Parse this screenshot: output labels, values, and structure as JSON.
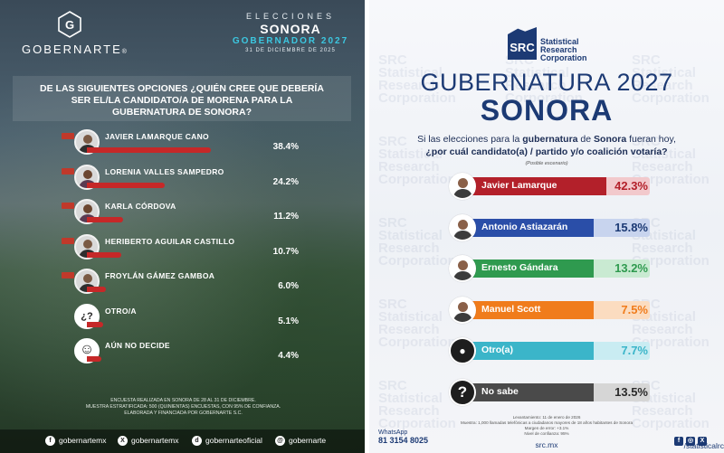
{
  "chart_data": [
    {
      "type": "bar",
      "title": "DE LAS SIGUIENTES OPCIONES ¿QUIÉN CREE QUE DEBERÍA SER EL/LA CANDIDATO/A DE MORENA PARA LA GUBERNATURA DE SONORA?",
      "categories": [
        "JAVIER LAMARQUE CANO",
        "LORENIA VALLES SAMPEDRO",
        "KARLA CÓRDOVA",
        "HERIBERTO AGUILAR CASTILLO",
        "FROYLÁN GÁMEZ GAMBOA",
        "OTRO/A",
        "AÚN NO DECIDE"
      ],
      "values": [
        38.4,
        24.2,
        11.2,
        10.7,
        6.0,
        5.1,
        4.4
      ],
      "value_labels": [
        "38.4%",
        "24.2%",
        "11.2%",
        "10.7%",
        "6.0%",
        "5.1%",
        "4.4%"
      ],
      "xlim": [
        0,
        40
      ],
      "bar_color": "#c62828"
    },
    {
      "type": "bar",
      "title": "GUBERNATURA 2027 SONORA",
      "categories": [
        "Javier Lamarque",
        "Antonio Astiazarán",
        "Ernesto Gándara",
        "Manuel Scott",
        "Otro(a)",
        "No sabe"
      ],
      "values": [
        42.3,
        15.8,
        13.2,
        7.5,
        7.7,
        13.5
      ],
      "value_labels": [
        "42.3%",
        "15.8%",
        "13.2%",
        "7.5%",
        "7.7%",
        "13.5%"
      ],
      "xlim": [
        0,
        50
      ],
      "colors": [
        {
          "fill": "#b3202a",
          "track": "#f2c9cc",
          "value": "#b3202a"
        },
        {
          "fill": "#2a4ea8",
          "track": "#c8d4ee",
          "value": "#1c3a74"
        },
        {
          "fill": "#2f9a4f",
          "track": "#c9ead2",
          "value": "#2f9a4f"
        },
        {
          "fill": "#f07c1c",
          "track": "#fbdcc0",
          "value": "#f07c1c"
        },
        {
          "fill": "#3bb5c9",
          "track": "#c9ecf2",
          "value": "#3bb5c9"
        },
        {
          "fill": "#4a4a4a",
          "track": "#d6d6d6",
          "value": "#2a2a2a"
        }
      ],
      "icons": [
        "avatar",
        "avatar",
        "avatar",
        "avatar",
        "person-icon",
        "question-icon"
      ]
    }
  ],
  "left": {
    "brand": "GOBERNARTE",
    "brand_mark": "®",
    "header_1": "ELECCIONES",
    "header_2": "SONORA",
    "header_3": "GOBERNADOR 2027",
    "header_4": "31 DE DICIEMBRE DE 2025",
    "question_part1": "DE LAS SIGUIENTES OPCIONES ¿QUIÉN CREE QUE DEBERÍA SER EL/LA CANDIDATO/A DE ",
    "question_highlight": "MORENA",
    "question_part2": " PARA LA GUBERNATURA DE SONORA?",
    "footnote_1": "ENCUESTA REALIZADA EN SONORA DE 28 AL 31 DE DICIEMBRE.",
    "footnote_2": "MUESTRA ESTRATIFICADA: 500 (QUINIENTAS) ENCUESTAS, CON 95% DE CONFIANZA.",
    "footnote_3": "ELABORADA Y FINANCIADA POR GOBERNARTE S.C.",
    "socials": [
      "gobernartemx",
      "gobernartemx",
      "gobernarteoficial",
      "gobernarte"
    ],
    "social_icons": [
      "f",
      "X",
      "d",
      "@"
    ]
  },
  "right": {
    "src_mark": "SRC",
    "src_name_1": "Statistical",
    "src_name_2": "Research",
    "src_name_3": "Corporation",
    "watermark": "SRC Statistical Research Corporation",
    "title_1": "GUBERNATURA 2027",
    "title_2": "SONORA",
    "question_1a": "Si las elecciones para la ",
    "question_1b": "gubernatura",
    "question_1c": " de ",
    "question_1d": "Sonora",
    "question_1e": " fueran hoy,",
    "question_2": "¿por cuál candidato(a) / partido y/o coalición votaría?",
    "scenario": "(Posible escenario)",
    "method_1": "Levantamiento: 11 de enero de 2026",
    "method_2": "Muestra: 1,000 llamadas telefónicas a ciudadanos mayores de 18 años habitantes de Sonora",
    "method_3": "Margen de error: +3.1%",
    "method_4": "Nivel de confianza: 95%",
    "whatsapp_label": "WhatsApp",
    "whatsapp_number": "81 3154 8025",
    "site": "src.mx",
    "handle": "/statisticalrc",
    "social_icons": [
      "f",
      "◎",
      "X"
    ]
  }
}
